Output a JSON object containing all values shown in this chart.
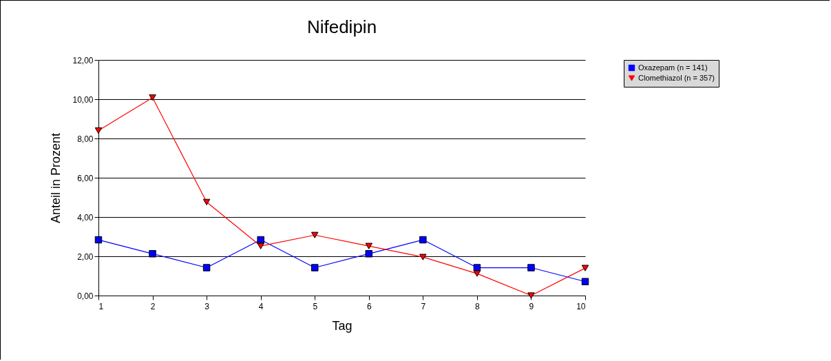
{
  "chart_data": {
    "type": "line",
    "title": "Nifedipin",
    "xlabel": "Tag",
    "ylabel": "Anteil in Prozent",
    "categories": [
      "1",
      "2",
      "3",
      "4",
      "5",
      "6",
      "7",
      "8",
      "9",
      "10"
    ],
    "series": [
      {
        "name": "Oxazepam (n = 141)",
        "color": "#0000ff",
        "marker": "square",
        "values": [
          2.84,
          2.13,
          1.42,
          2.84,
          1.42,
          2.13,
          2.84,
          1.42,
          1.42,
          0.71
        ]
      },
      {
        "name": "Clomethiazol (n = 357)",
        "color": "#ff0000",
        "marker": "triangle-down",
        "values": [
          8.4,
          10.08,
          4.76,
          2.52,
          3.08,
          2.52,
          1.96,
          1.12,
          0,
          1.4
        ]
      }
    ],
    "ylim": [
      0,
      12
    ],
    "yticks": [
      {
        "value": 0,
        "label": "0,00"
      },
      {
        "value": 2,
        "label": "2,00"
      },
      {
        "value": 4,
        "label": "4,00"
      },
      {
        "value": 6,
        "label": "6,00"
      },
      {
        "value": 8,
        "label": "8,00"
      },
      {
        "value": 10,
        "label": "10,00"
      },
      {
        "value": 12,
        "label": "12,00"
      }
    ],
    "grid": "y",
    "legend": "right",
    "line_style": "solid"
  }
}
